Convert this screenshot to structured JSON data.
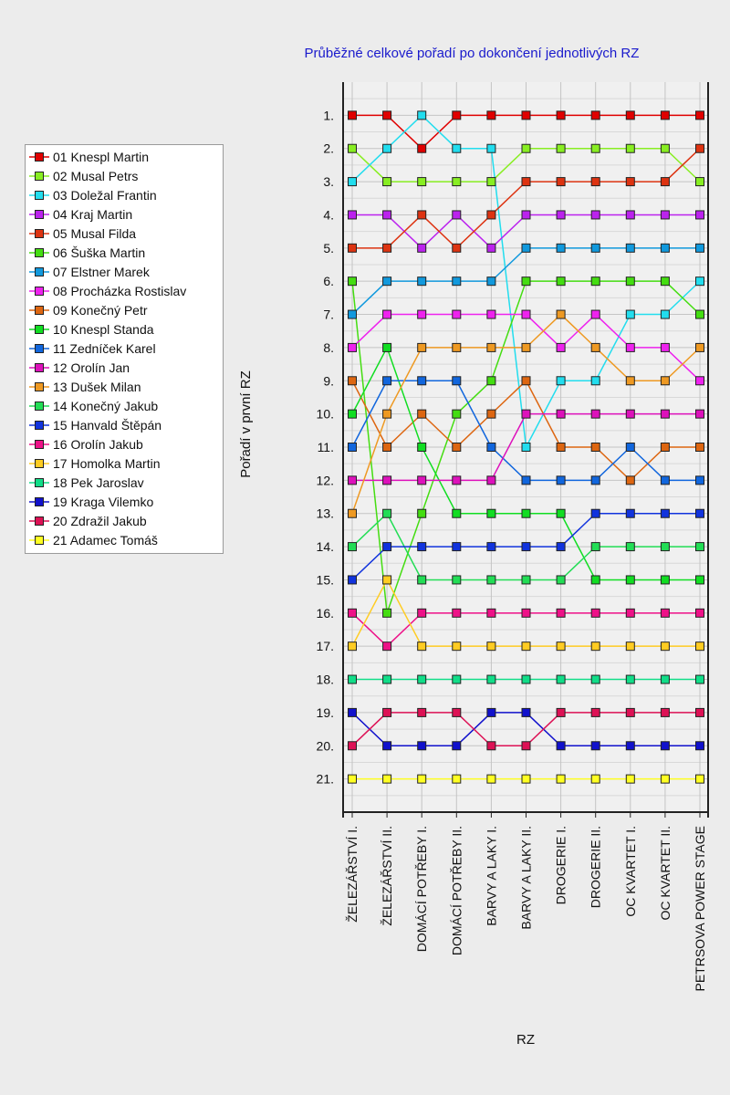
{
  "chart_data": {
    "type": "line",
    "title": "Průběžné celkové pořadí po dokončení jednotlivých RZ",
    "xlabel": "RZ",
    "ylabel": "Pořadí v první RZ",
    "categories": [
      "ŽELEZÁŘSTVÍ I.",
      "ŽELEZÁŘSTVÍ  II.",
      "DOMÁCÍ POTŘEBY I.",
      "DOMÁCÍ POTŘEBY II.",
      "BARVY A LAKY I.",
      "BARVY A LAKY II.",
      "DROGERIE I.",
      "DROGERIE II.",
      "OC KVARTET I.",
      "OC KVARTET II.",
      "PETRSOVA POWER STAGE"
    ],
    "y_tick_labels": [
      "1.",
      "2.",
      "3.",
      "4.",
      "5.",
      "6.",
      "7.",
      "8.",
      "9.",
      "10.",
      "11.",
      "12.",
      "13.",
      "14.",
      "15.",
      "16.",
      "17.",
      "18.",
      "19.",
      "20.",
      "21."
    ],
    "ylim": [
      0,
      22
    ],
    "y_inverted": true,
    "grid": true,
    "legend_position": "left",
    "series": [
      {
        "name": "01 Knespl Martin",
        "color": "#e00000",
        "values": [
          1,
          1,
          2,
          1,
          1,
          1,
          1,
          1,
          1,
          1,
          1
        ]
      },
      {
        "name": "02 Musal Petrs",
        "color": "#88ee22",
        "values": [
          2,
          3,
          3,
          3,
          3,
          2,
          2,
          2,
          2,
          2,
          3
        ]
      },
      {
        "name": "03 Doležal Frantin",
        "color": "#22ddee",
        "values": [
          3,
          2,
          1,
          2,
          2,
          11,
          9,
          9,
          7,
          7,
          6
        ]
      },
      {
        "name": "04 Kraj Martin",
        "color": "#bb22ee",
        "values": [
          4,
          4,
          5,
          4,
          5,
          4,
          4,
          4,
          4,
          4,
          4
        ]
      },
      {
        "name": "05 Musal Filda",
        "color": "#dd3311",
        "values": [
          5,
          5,
          4,
          5,
          4,
          3,
          3,
          3,
          3,
          3,
          2
        ]
      },
      {
        "name": "06 Šuška Martin",
        "color": "#44dd11",
        "values": [
          6,
          16,
          13,
          10,
          9,
          6,
          6,
          6,
          6,
          6,
          7
        ]
      },
      {
        "name": "07 Elstner Marek",
        "color": "#1199dd",
        "values": [
          7,
          6,
          6,
          6,
          6,
          5,
          5,
          5,
          5,
          5,
          5
        ]
      },
      {
        "name": "08 Procházka Rostislav",
        "color": "#ee22ee",
        "values": [
          8,
          7,
          7,
          7,
          7,
          7,
          8,
          7,
          8,
          8,
          9
        ]
      },
      {
        "name": "09 Konečný Petr",
        "color": "#dd6611",
        "values": [
          9,
          11,
          10,
          11,
          10,
          9,
          11,
          11,
          12,
          11,
          11
        ]
      },
      {
        "name": "10 Knespl Standa",
        "color": "#11dd22",
        "values": [
          10,
          8,
          11,
          13,
          13,
          13,
          13,
          15,
          15,
          15,
          15
        ]
      },
      {
        "name": "11 Zedníček Karel",
        "color": "#1166dd",
        "values": [
          11,
          9,
          9,
          9,
          11,
          12,
          12,
          12,
          11,
          12,
          12
        ]
      },
      {
        "name": "12 Orolín Jan",
        "color": "#dd11bb",
        "values": [
          12,
          12,
          12,
          12,
          12,
          10,
          10,
          10,
          10,
          10,
          10
        ]
      },
      {
        "name": "13 Dušek Milan",
        "color": "#ee9922",
        "values": [
          13,
          10,
          8,
          8,
          8,
          8,
          7,
          8,
          9,
          9,
          8
        ]
      },
      {
        "name": "14 Konečný Jakub",
        "color": "#22dd55",
        "values": [
          14,
          13,
          15,
          15,
          15,
          15,
          15,
          14,
          14,
          14,
          14
        ]
      },
      {
        "name": "15 Hanvald Štěpán",
        "color": "#1133dd",
        "values": [
          15,
          14,
          14,
          14,
          14,
          14,
          14,
          13,
          13,
          13,
          13
        ]
      },
      {
        "name": "16 Orolín Jakub",
        "color": "#ee1188",
        "values": [
          16,
          17,
          16,
          16,
          16,
          16,
          16,
          16,
          16,
          16,
          16
        ]
      },
      {
        "name": "17 Homolka Martin",
        "color": "#ffcc22",
        "values": [
          17,
          15,
          17,
          17,
          17,
          17,
          17,
          17,
          17,
          17,
          17
        ]
      },
      {
        "name": "18 Pek Jaroslav",
        "color": "#11dd88",
        "values": [
          18,
          18,
          18,
          18,
          18,
          18,
          18,
          18,
          18,
          18,
          18
        ]
      },
      {
        "name": "19 Kraga Vilemko",
        "color": "#1111cc",
        "values": [
          19,
          20,
          20,
          20,
          19,
          19,
          20,
          20,
          20,
          20,
          20
        ]
      },
      {
        "name": "20 Zdražil Jakub",
        "color": "#dd1155",
        "values": [
          20,
          19,
          19,
          19,
          20,
          20,
          19,
          19,
          19,
          19,
          19
        ]
      },
      {
        "name": "21 Adamec Tomáš",
        "color": "#ffff22",
        "values": [
          21,
          21,
          21,
          21,
          21,
          21,
          21,
          21,
          21,
          21,
          21
        ]
      }
    ]
  }
}
